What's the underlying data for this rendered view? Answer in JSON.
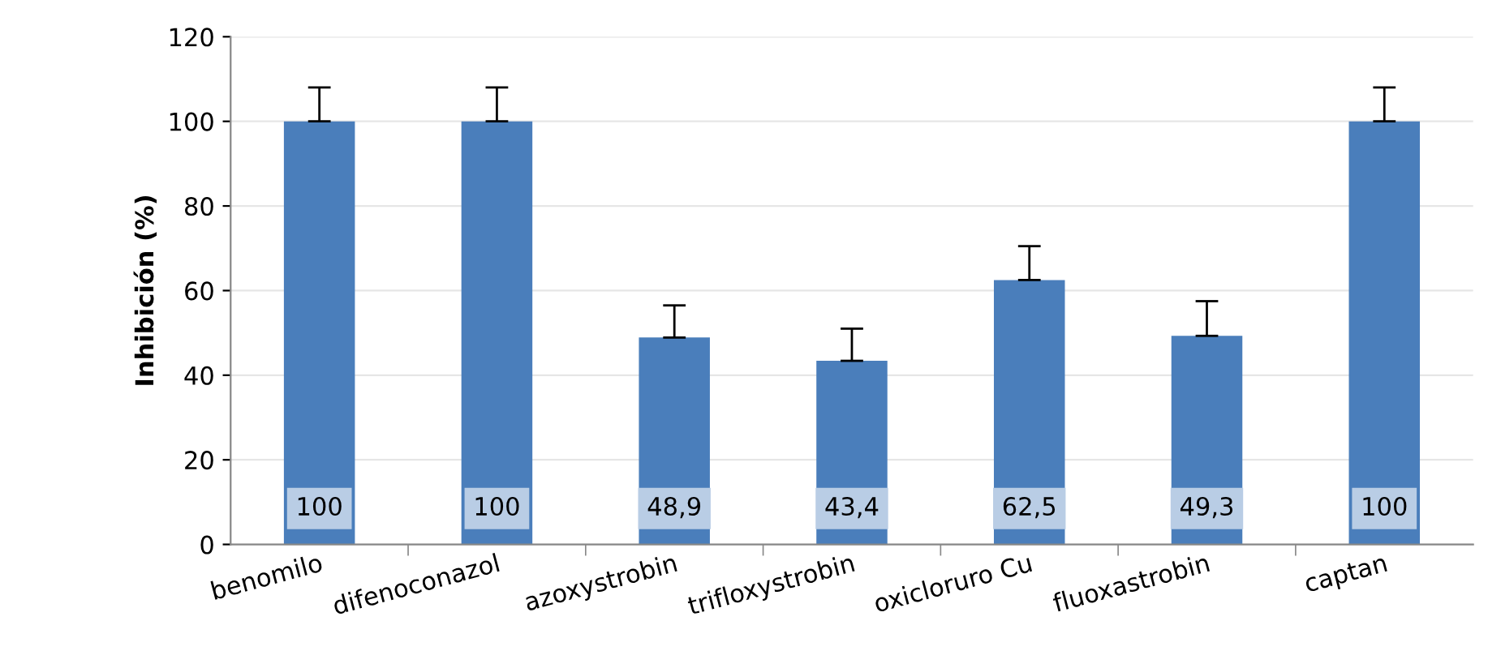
{
  "chart_data": {
    "type": "bar",
    "ylabel": "Inhibición (%)",
    "categories": [
      "benomilo",
      "difenoconazol",
      "azoxystrobin",
      "trifloxystrobin",
      "oxicloruro Cu",
      "fluoxastrobin",
      "captan"
    ],
    "values": [
      100,
      100,
      48.9,
      43.4,
      62.5,
      49.3,
      100
    ],
    "errors": [
      [
        100,
        108
      ],
      [
        100,
        108
      ],
      [
        48.9,
        56.5
      ],
      [
        43.4,
        51
      ],
      [
        62.5,
        70.5
      ],
      [
        49.3,
        57.5
      ],
      [
        100,
        108
      ]
    ],
    "value_labels": [
      "100",
      "100",
      "48,9",
      "43,4",
      "62,5",
      "49,3",
      "100"
    ],
    "color": "#4a7ebb",
    "ylim": [
      0,
      120
    ],
    "yticks": [
      0,
      20,
      40,
      60,
      80,
      100,
      120
    ],
    "grid": "y"
  }
}
